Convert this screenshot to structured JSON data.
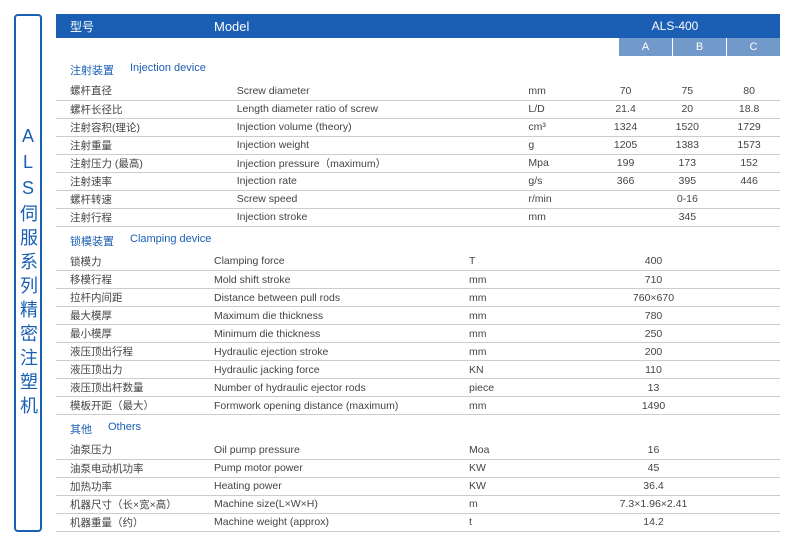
{
  "sidebar": {
    "text": "ALS伺服系列精密注塑机"
  },
  "header": {
    "type_cn": "型号",
    "model_label": "Model",
    "model_value": "ALS-400",
    "cols": [
      "A",
      "B",
      "C"
    ]
  },
  "sections": [
    {
      "title_cn": "注射装置",
      "title_en": "Injection device",
      "rows": [
        {
          "cn": "螺杆直径",
          "en": "Screw diameter",
          "unit": "mm",
          "vals": [
            "70",
            "75",
            "80"
          ]
        },
        {
          "cn": "螺杆长径比",
          "en": "Length diameter ratio of screw",
          "unit": "L/D",
          "vals": [
            "21.4",
            "20",
            "18.8"
          ]
        },
        {
          "cn": "注射容积(理论)",
          "en": "Injection  volume (theory)",
          "unit": "cm³",
          "vals": [
            "1324",
            "1520",
            "1729"
          ]
        },
        {
          "cn": "注射重量",
          "en": "Injection  weight",
          "unit": "g",
          "vals": [
            "1205",
            "1383",
            "1573"
          ]
        },
        {
          "cn": "注射压力 (最高)",
          "en": "Injection  pressure（maximum）",
          "unit": "Mpa",
          "vals": [
            "199",
            "173",
            "152"
          ]
        },
        {
          "cn": "注射速率",
          "en": "Injection  rate",
          "unit": "g/s",
          "vals": [
            "366",
            "395",
            "446"
          ]
        },
        {
          "cn": "螺杆转速",
          "en": "Screw speed",
          "unit": "r/min",
          "merged": "0-16"
        },
        {
          "cn": "注射行程",
          "en": "Injection  stroke",
          "unit": "mm",
          "merged": "345"
        }
      ]
    },
    {
      "title_cn": "锁模装置",
      "title_en": "Clamping device",
      "rows": [
        {
          "cn": "锁模力",
          "en": "Clamping  force",
          "unit": "T",
          "merged": "400"
        },
        {
          "cn": "移模行程",
          "en": "Mold shift stroke",
          "unit": "mm",
          "merged": "710"
        },
        {
          "cn": "拉杆内间距",
          "en": "Distance  between  pull  rods",
          "unit": "mm",
          "merged": "760×670"
        },
        {
          "cn": "最大模厚",
          "en": "Maximum die  thickness",
          "unit": "mm",
          "merged": "780"
        },
        {
          "cn": "最小模厚",
          "en": "Minimum  die  thickness",
          "unit": "mm",
          "merged": "250"
        },
        {
          "cn": "液压顶出行程",
          "en": "Hydraulic ejection  stroke",
          "unit": "mm",
          "merged": "200"
        },
        {
          "cn": "液压顶出力",
          "en": "Hydraulic jacking  force",
          "unit": "KN",
          "merged": "110"
        },
        {
          "cn": "液压顶出杆数量",
          "en": "Number  of hydraulic ejector  rods",
          "unit": "piece",
          "merged": "13"
        },
        {
          "cn": "模板开距（最大）",
          "en": "Formwork  opening  distance (maximum)",
          "unit": "mm",
          "merged": "1490"
        }
      ]
    },
    {
      "title_cn": "其他",
      "title_en": "Others",
      "rows": [
        {
          "cn": "油泵压力",
          "en": "Oil pump pressure",
          "unit": "Moa",
          "merged": "16"
        },
        {
          "cn": "油泵电动机功率",
          "en": "Pump motor  power",
          "unit": "KW",
          "merged": "45"
        },
        {
          "cn": "加热功率",
          "en": "Heating  power",
          "unit": "KW",
          "merged": "36.4"
        },
        {
          "cn": "机器尺寸（长×宽×高）",
          "en": "Machine  size(L×W×H)",
          "unit": "m",
          "merged": "7.3×1.96×2.41"
        },
        {
          "cn": "机器重量（约）",
          "en": "Machine  weight (approx)",
          "unit": "t",
          "merged": "14.2"
        }
      ]
    }
  ]
}
